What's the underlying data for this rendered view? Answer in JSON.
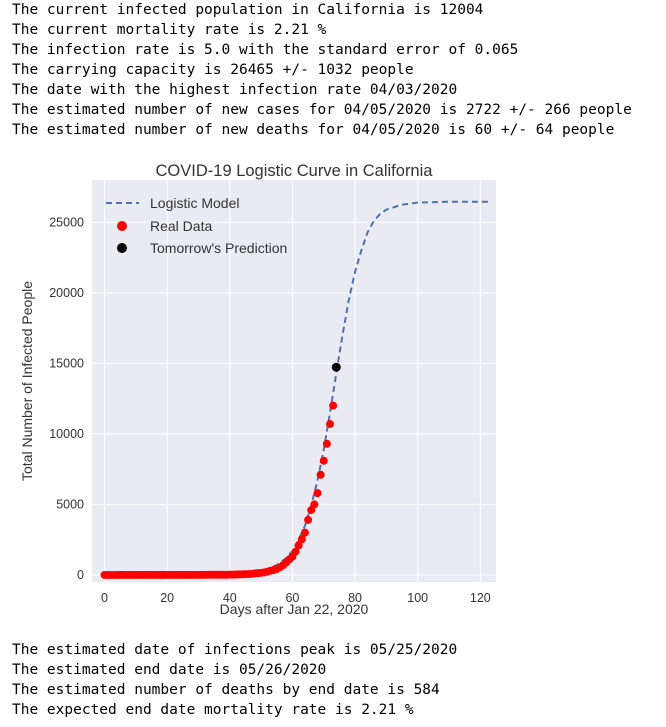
{
  "output_top": [
    "The current infected population in California is 12004",
    "The current mortality rate is 2.21 %",
    "The infection rate is 5.0 with the standard error of 0.065",
    "The carrying capacity is 26465 +/- 1032 people",
    "The date with the highest infection rate 04/03/2020",
    "The estimated number of new cases for 04/05/2020 is 2722 +/- 266 people",
    "The estimated number of new deaths for 04/05/2020 is 60 +/- 64 people"
  ],
  "output_bottom": [
    "The estimated date of infections peak is 05/25/2020",
    "The estimated end date is 05/26/2020",
    "The estimated number of deaths by end date is 584",
    "The expected end date mortality rate is 2.21 %"
  ],
  "chart_data": {
    "type": "scatter",
    "title": "COVID-19 Logistic Curve in California",
    "xlabel": "Days after Jan 22, 2020",
    "ylabel": "Total Number of Infected People",
    "xlim": [
      -4,
      125
    ],
    "ylim": [
      -500,
      28000
    ],
    "xticks": [
      0,
      20,
      40,
      60,
      80,
      100,
      120
    ],
    "yticks": [
      0,
      5000,
      10000,
      15000,
      20000,
      25000
    ],
    "grid": true,
    "legend_position": "top-left",
    "colors": {
      "background": "#eaeaf2",
      "grid": "#ffffff",
      "model": "#4c72b0",
      "real": "#ff0000",
      "prediction": "#000000"
    },
    "logistic_model": {
      "name": "Logistic Model",
      "x": [
        0,
        10,
        20,
        30,
        40,
        45,
        50,
        55,
        58,
        60,
        62,
        64,
        66,
        68,
        70,
        72,
        74,
        76,
        78,
        80,
        82,
        84,
        86,
        88,
        90,
        95,
        100,
        110,
        123
      ],
      "y": [
        0,
        0,
        0,
        2,
        35,
        90,
        260,
        700,
        1200,
        1700,
        2500,
        3500,
        4900,
        6700,
        8900,
        11500,
        14300,
        17000,
        19500,
        21500,
        23000,
        24300,
        25100,
        25600,
        25900,
        26250,
        26400,
        26460,
        26465
      ]
    },
    "series": [
      {
        "name": "Real Data",
        "x": [
          0,
          1,
          2,
          3,
          4,
          5,
          6,
          7,
          8,
          9,
          10,
          11,
          12,
          13,
          14,
          15,
          16,
          17,
          18,
          19,
          20,
          21,
          22,
          23,
          24,
          25,
          26,
          27,
          28,
          29,
          30,
          31,
          32,
          33,
          34,
          35,
          36,
          37,
          38,
          39,
          40,
          41,
          42,
          43,
          44,
          45,
          46,
          47,
          48,
          49,
          50,
          51,
          52,
          53,
          54,
          55,
          56,
          57,
          58,
          59,
          60,
          61,
          62,
          63,
          64,
          65,
          66,
          67,
          68,
          69,
          70,
          71,
          72
        ],
        "y": [
          0,
          0,
          0,
          0,
          2,
          2,
          2,
          2,
          2,
          2,
          2,
          2,
          3,
          3,
          6,
          6,
          6,
          6,
          6,
          6,
          6,
          6,
          6,
          6,
          6,
          6,
          6,
          6,
          6,
          6,
          6,
          6,
          6,
          10,
          10,
          10,
          10,
          10,
          10,
          10,
          20,
          25,
          30,
          40,
          50,
          55,
          60,
          80,
          110,
          130,
          150,
          180,
          230,
          300,
          350,
          420,
          540,
          690,
          880,
          1100,
          1300,
          1650,
          2100,
          2530,
          3000,
          3900,
          4600,
          5000,
          5800,
          7100,
          8100,
          9300,
          10700
        ]
      },
      {
        "name": "Tomorrow's Prediction",
        "x": [
          74
        ],
        "y": [
          14726
        ]
      }
    ],
    "last_real_point": {
      "x": 73,
      "y": 12004
    }
  }
}
